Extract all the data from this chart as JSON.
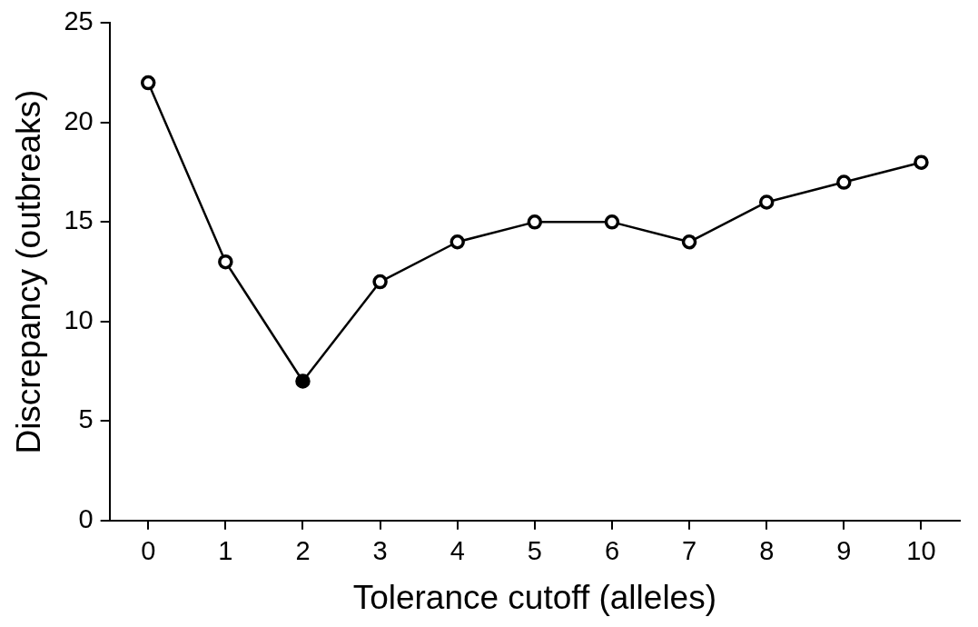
{
  "chart_data": {
    "type": "line",
    "xlabel": "Tolerance cutoff (alleles)",
    "ylabel": "Discrepancy (outbreaks)",
    "categories": [
      "0",
      "1",
      "2",
      "3",
      "4",
      "5",
      "6",
      "7",
      "8",
      "9",
      "10"
    ],
    "series": [
      {
        "color": "#000000",
        "colors": [
          "#ffffff",
          "#ffffff",
          "#000000",
          "#ffffff",
          "#ffffff",
          "#ffffff",
          "#ffffff",
          "#ffffff",
          "#ffffff",
          "#ffffff",
          "#ffffff"
        ],
        "values": [
          22,
          13,
          7,
          12,
          14,
          15,
          15,
          14,
          16,
          17,
          18
        ]
      }
    ],
    "ylim": [
      0,
      25
    ],
    "yticks": [
      0,
      5,
      10,
      15,
      20,
      25
    ],
    "grid": false,
    "legend": false,
    "marker": "circle",
    "line_style": "solid"
  }
}
